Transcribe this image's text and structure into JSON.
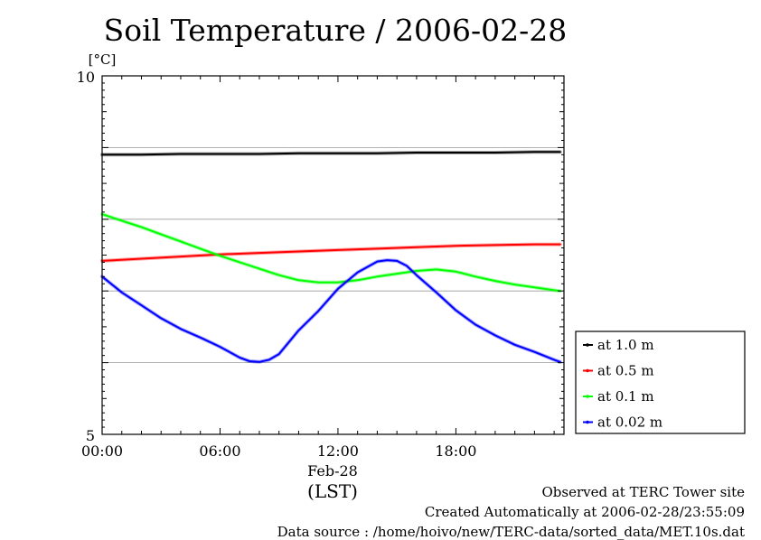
{
  "chart_data": {
    "type": "line",
    "title": "Soil Temperature / 2006-02-28",
    "ylabel": "[°C]",
    "ylim": [
      5,
      10
    ],
    "yticks": [
      "10",
      "5"
    ],
    "xlim": [
      0,
      23.5
    ],
    "xticks": [
      {
        "x": 0,
        "label": "00:00"
      },
      {
        "x": 6,
        "label": "06:00"
      },
      {
        "x": 12,
        "label": "12:00"
      },
      {
        "x": 18,
        "label": "18:00"
      }
    ],
    "xdate": "Feb-28",
    "xunit": "(LST)",
    "gridlines_y": [
      6,
      7,
      8,
      9
    ],
    "legend_position": "right",
    "series": [
      {
        "name": "at 1.0 m",
        "color": "#000000",
        "x": [
          0,
          2,
          4,
          6,
          8,
          10,
          12,
          14,
          16,
          18,
          20,
          22,
          23.3
        ],
        "y": [
          8.9,
          8.9,
          8.91,
          8.91,
          8.91,
          8.92,
          8.92,
          8.92,
          8.93,
          8.93,
          8.93,
          8.94,
          8.94
        ]
      },
      {
        "name": "at 0.5 m",
        "color": "#ff0000",
        "x": [
          0,
          2,
          4,
          6,
          8,
          10,
          12,
          14,
          16,
          18,
          20,
          22,
          23.3
        ],
        "y": [
          7.42,
          7.45,
          7.48,
          7.51,
          7.53,
          7.55,
          7.57,
          7.59,
          7.61,
          7.63,
          7.64,
          7.65,
          7.65
        ]
      },
      {
        "name": "at 0.1 m",
        "color": "#00ff00",
        "x": [
          0,
          1,
          2,
          3,
          4,
          5,
          6,
          7,
          8,
          9,
          10,
          11,
          12,
          13,
          14,
          15,
          16,
          17,
          18,
          19,
          20,
          21,
          22,
          23,
          23.3
        ],
        "y": [
          8.07,
          7.98,
          7.89,
          7.79,
          7.69,
          7.59,
          7.49,
          7.4,
          7.31,
          7.22,
          7.15,
          7.12,
          7.12,
          7.15,
          7.2,
          7.24,
          7.28,
          7.3,
          7.27,
          7.2,
          7.14,
          7.09,
          7.05,
          7.01,
          7.0
        ]
      },
      {
        "name": "at 0.02 m",
        "color": "#0000ff",
        "x": [
          0,
          1,
          2,
          3,
          4,
          5,
          6,
          7,
          7.5,
          8,
          8.5,
          9,
          10,
          11,
          12,
          13,
          14,
          14.5,
          15,
          15.5,
          16,
          17,
          18,
          19,
          20,
          21,
          22,
          23,
          23.3
        ],
        "y": [
          7.2,
          6.98,
          6.8,
          6.62,
          6.47,
          6.35,
          6.22,
          6.07,
          6.02,
          6.01,
          6.04,
          6.12,
          6.45,
          6.72,
          7.03,
          7.26,
          7.41,
          7.43,
          7.42,
          7.35,
          7.22,
          6.98,
          6.73,
          6.53,
          6.38,
          6.25,
          6.15,
          6.04,
          6.01
        ]
      }
    ]
  },
  "footer": {
    "site": "Observed at TERC Tower site",
    "created": "Created Automatically at 2006-02-28/23:55:09",
    "source": "Data source : /home/hoivo/new/TERC-data/sorted_data/MET.10s.dat"
  }
}
